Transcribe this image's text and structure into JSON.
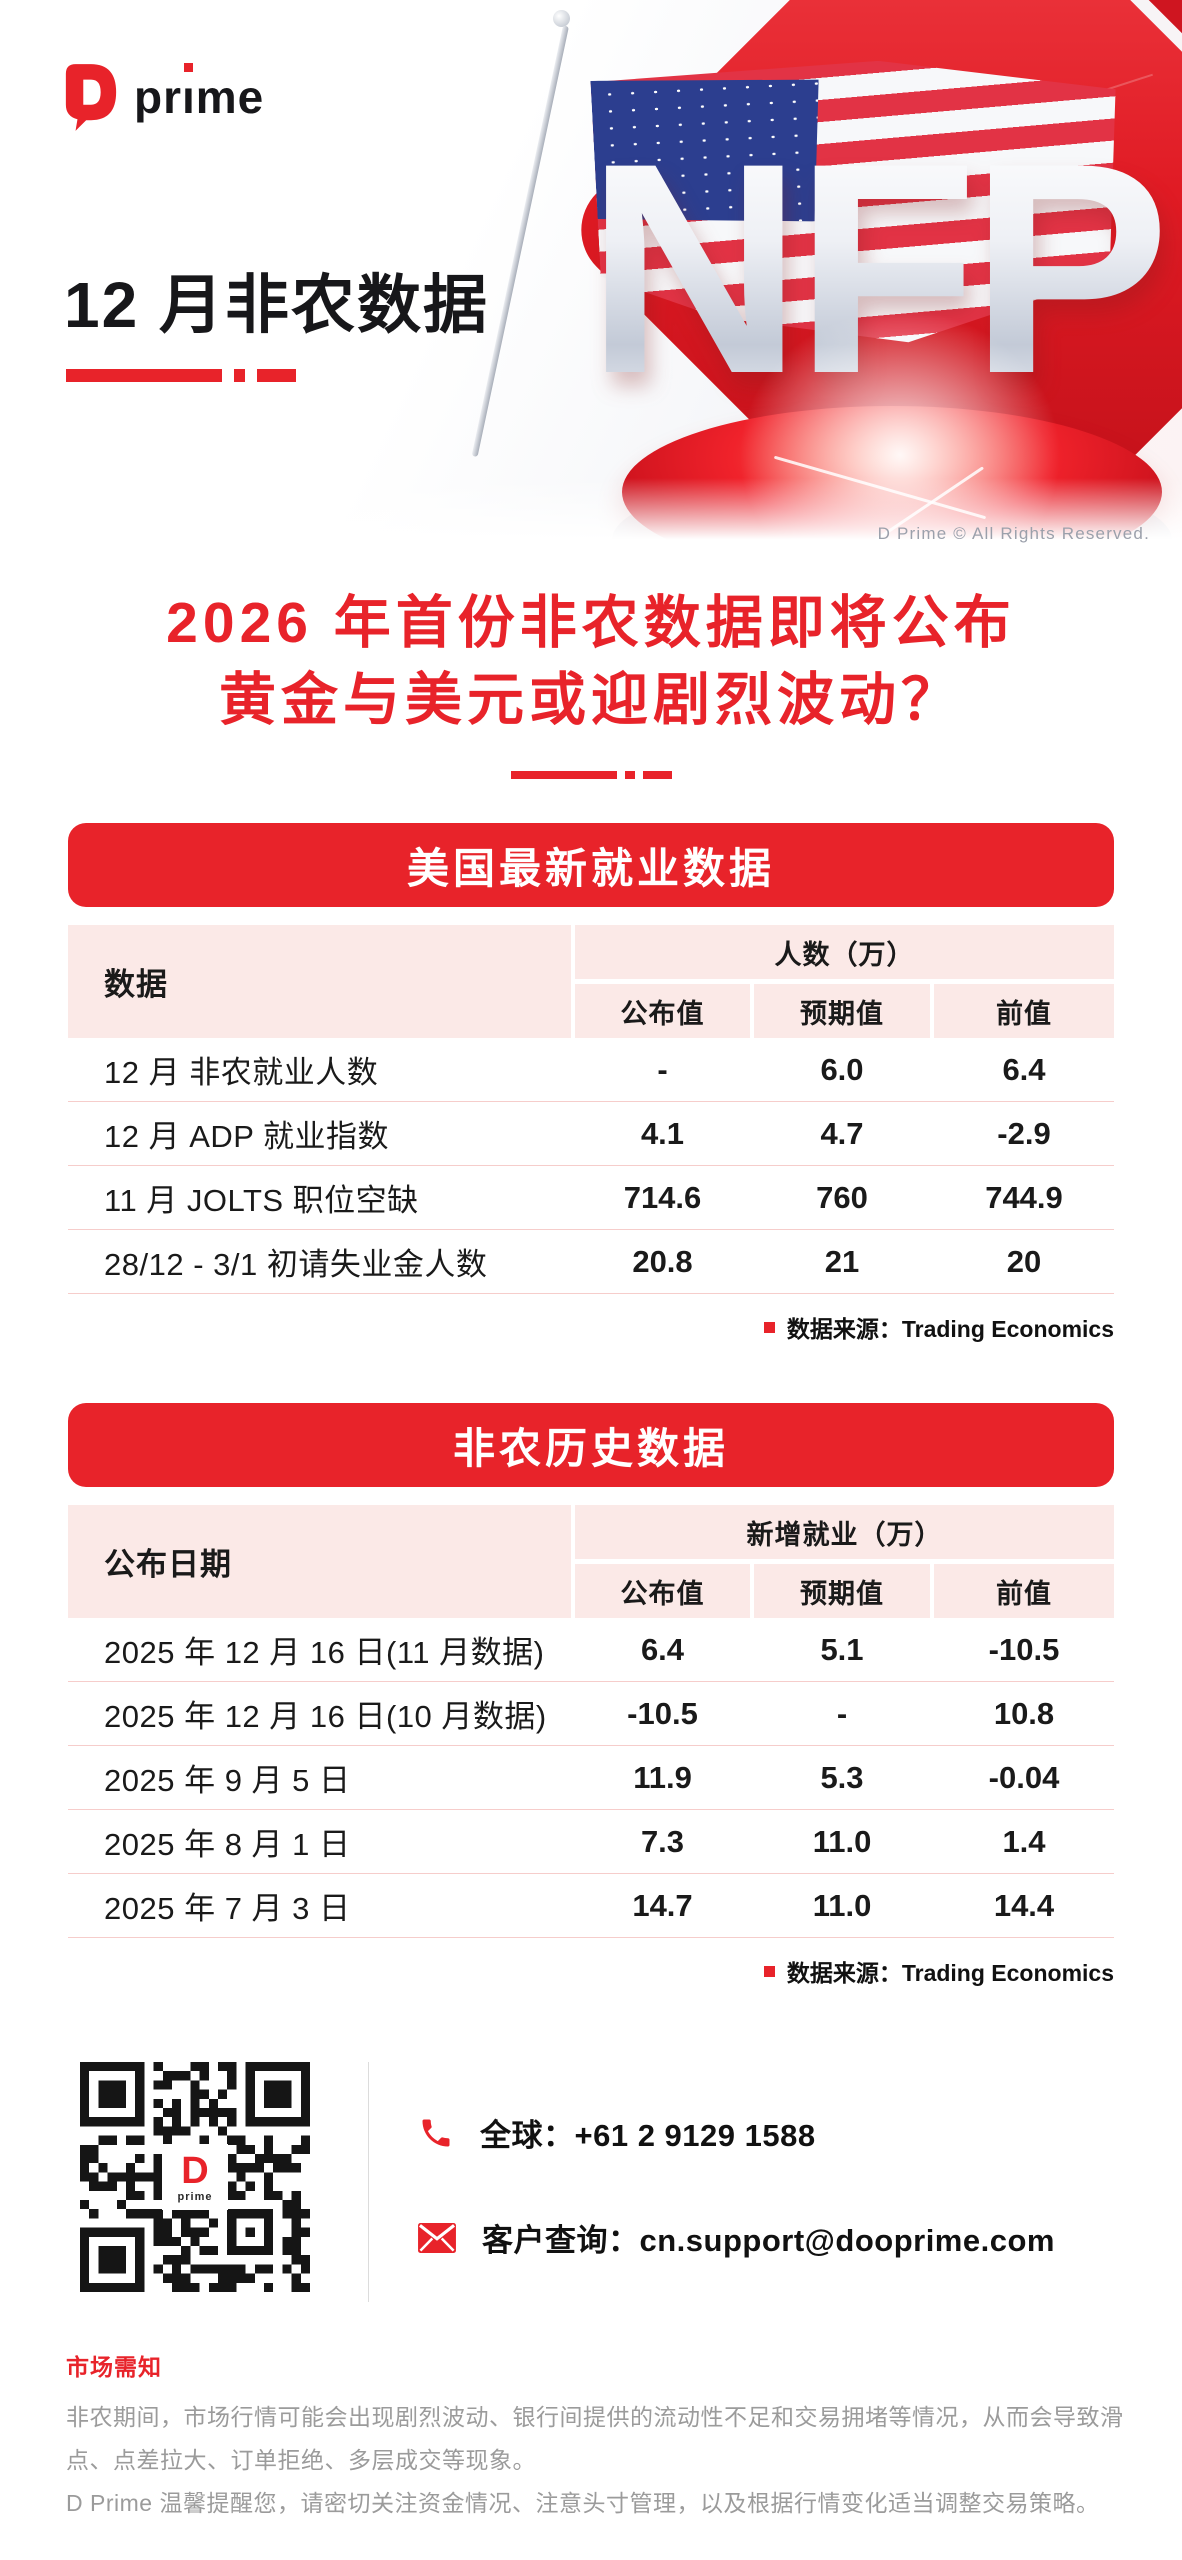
{
  "hero": {
    "brand": {
      "wordmark_pr": "pr",
      "wordmark_i": "ı",
      "wordmark_me": "me"
    },
    "title": "12 月非农数据",
    "nfp": "NFP",
    "copyright": "D Prime © All Rights Reserved."
  },
  "headline": {
    "line1": "2026 年首份非农数据即将公布",
    "line2": "黄金与美元或迎剧烈波动？"
  },
  "tables": [
    {
      "title": "美国最新就业数据",
      "col_header": "数据",
      "group_header": "人数（万）",
      "sub_headers": [
        "公布值",
        "预期值",
        "前值"
      ],
      "rows": [
        {
          "label": "12 月 非农就业人数",
          "values": [
            "-",
            "6.0",
            "6.4"
          ]
        },
        {
          "label": "12 月 ADP 就业指数",
          "values": [
            "4.1",
            "4.7",
            "-2.9"
          ]
        },
        {
          "label": "11 月 JOLTS 职位空缺",
          "values": [
            "714.6",
            "760",
            "744.9"
          ]
        },
        {
          "label": "28/12 - 3/1 初请失业金人数",
          "values": [
            "20.8",
            "21",
            "20"
          ]
        }
      ],
      "source": "数据来源：Trading Economics"
    },
    {
      "title": "非农历史数据",
      "col_header": "公布日期",
      "group_header": "新增就业（万）",
      "sub_headers": [
        "公布值",
        "预期值",
        "前值"
      ],
      "rows": [
        {
          "label": "2025 年 12 月 16 日(11 月数据)",
          "values": [
            "6.4",
            "5.1",
            "-10.5"
          ]
        },
        {
          "label": "2025 年 12 月 16 日(10 月数据)",
          "values": [
            "-10.5",
            "-",
            "10.8"
          ]
        },
        {
          "label": "2025 年 9 月 5 日",
          "values": [
            "11.9",
            "5.3",
            "-0.04"
          ]
        },
        {
          "label": "2025 年 8 月 1 日",
          "values": [
            "7.3",
            "11.0",
            "1.4"
          ]
        },
        {
          "label": "2025 年 7 月 3 日",
          "values": [
            "14.7",
            "11.0",
            "14.4"
          ]
        }
      ],
      "source": "数据来源：Trading Economics"
    }
  ],
  "contact": {
    "phone_label": "全球：+61 2 9129 1588",
    "email_label": "客户查询：cn.support@dooprime.com",
    "qr_logo_d": "D",
    "qr_logo_text": "prime"
  },
  "footer": {
    "title": "市场需知",
    "lines": [
      "非农期间，市场行情可能会出现剧烈波动、银行间提供的流动性不足和交易拥堵等情况，从而会导致滑点、点差拉大、订单拒绝、多层成交等现象。",
      "D Prime 温馨提醒您，请密切关注资金情况、注意头寸管理，以及根据行情变化适当调整交易策略。"
    ]
  },
  "colors": {
    "brand_red": "#E8232A",
    "header_pink": "#FBE9E7",
    "row_divider": "#F6CDCB",
    "text_dark": "#1A1A1A",
    "muted_gray": "#9B9B9B"
  }
}
